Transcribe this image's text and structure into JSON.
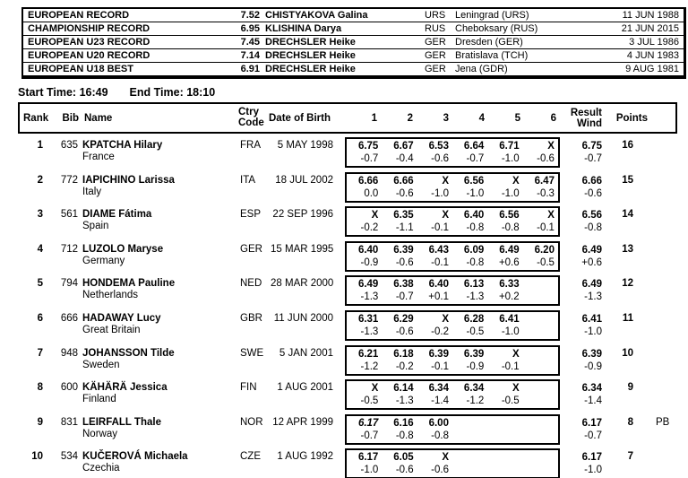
{
  "records": {
    "rows": [
      {
        "label": "EUROPEAN RECORD",
        "mark": "7.52",
        "athlete": "CHISTYAKOVA Galina",
        "nat": "URS",
        "venue": "Leningrad (URS)",
        "date": "11 JUN 1988"
      },
      {
        "label": "CHAMPIONSHIP RECORD",
        "mark": "6.95",
        "athlete": "KLISHINA Darya",
        "nat": "RUS",
        "venue": "Cheboksary (RUS)",
        "date": "21 JUN 2015"
      },
      {
        "label": "EUROPEAN U23 RECORD",
        "mark": "7.45",
        "athlete": "DRECHSLER Heike",
        "nat": "GER",
        "venue": "Dresden (GER)",
        "date": "3 JUL 1986"
      },
      {
        "label": "EUROPEAN U20 RECORD",
        "mark": "7.14",
        "athlete": "DRECHSLER Heike",
        "nat": "GER",
        "venue": "Bratislava (TCH)",
        "date": "4 JUN 1983"
      },
      {
        "label": "EUROPEAN U18 BEST",
        "mark": "6.91",
        "athlete": "DRECHSLER Heike",
        "nat": "GER",
        "venue": "Jena (GDR)",
        "date": "9 AUG 1981"
      }
    ]
  },
  "times": {
    "start_label": "Start Time:",
    "start_value": "16:49",
    "end_label": "End Time:",
    "end_value": "18:10"
  },
  "table": {
    "headers": {
      "rank": "Rank",
      "bib": "Bib",
      "name": "Name",
      "ctry_line1": "Ctry",
      "ctry_line2": "Code",
      "dob": "Date of Birth",
      "attempts": [
        "1",
        "2",
        "3",
        "4",
        "5",
        "6"
      ],
      "result_line1": "Result",
      "result_line2": "Wind",
      "points": "Points"
    },
    "rows": [
      {
        "rank": "1",
        "bib": "635",
        "name": "KPATCHA Hilary",
        "country": "France",
        "ctry": "FRA",
        "dob": "5 MAY 1998",
        "attempts": [
          {
            "mark": "6.75",
            "wind": "-0.7"
          },
          {
            "mark": "6.67",
            "wind": "-0.4"
          },
          {
            "mark": "6.53",
            "wind": "-0.6"
          },
          {
            "mark": "6.64",
            "wind": "-0.7"
          },
          {
            "mark": "6.71",
            "wind": "-1.0"
          },
          {
            "mark": "X",
            "wind": "-0.6"
          }
        ],
        "result": "6.75",
        "result_wind": "-0.7",
        "points": "16",
        "note": ""
      },
      {
        "rank": "2",
        "bib": "772",
        "name": "IAPICHINO Larissa",
        "country": "Italy",
        "ctry": "ITA",
        "dob": "18 JUL 2002",
        "attempts": [
          {
            "mark": "6.66",
            "wind": "0.0"
          },
          {
            "mark": "6.66",
            "wind": "-0.6"
          },
          {
            "mark": "X",
            "wind": "-1.0"
          },
          {
            "mark": "6.56",
            "wind": "-1.0"
          },
          {
            "mark": "X",
            "wind": "-1.0"
          },
          {
            "mark": "6.47",
            "wind": "-0.3"
          }
        ],
        "result": "6.66",
        "result_wind": "-0.6",
        "points": "15",
        "note": ""
      },
      {
        "rank": "3",
        "bib": "561",
        "name": "DIAME Fátima",
        "country": "Spain",
        "ctry": "ESP",
        "dob": "22 SEP 1996",
        "attempts": [
          {
            "mark": "X",
            "wind": "-0.2"
          },
          {
            "mark": "6.35",
            "wind": "-1.1"
          },
          {
            "mark": "X",
            "wind": "-0.1"
          },
          {
            "mark": "6.40",
            "wind": "-0.8"
          },
          {
            "mark": "6.56",
            "wind": "-0.8"
          },
          {
            "mark": "X",
            "wind": "-0.1"
          }
        ],
        "result": "6.56",
        "result_wind": "-0.8",
        "points": "14",
        "note": ""
      },
      {
        "rank": "4",
        "bib": "712",
        "name": "LUZOLO Maryse",
        "country": "Germany",
        "ctry": "GER",
        "dob": "15 MAR 1995",
        "attempts": [
          {
            "mark": "6.40",
            "wind": "-0.9"
          },
          {
            "mark": "6.39",
            "wind": "-0.6"
          },
          {
            "mark": "6.43",
            "wind": "-0.1"
          },
          {
            "mark": "6.09",
            "wind": "-0.8"
          },
          {
            "mark": "6.49",
            "wind": "+0.6"
          },
          {
            "mark": "6.20",
            "wind": "-0.5"
          }
        ],
        "result": "6.49",
        "result_wind": "+0.6",
        "points": "13",
        "note": ""
      },
      {
        "rank": "5",
        "bib": "794",
        "name": "HONDEMA Pauline",
        "country": "Netherlands",
        "ctry": "NED",
        "dob": "28 MAR 2000",
        "attempts": [
          {
            "mark": "6.49",
            "wind": "-1.3"
          },
          {
            "mark": "6.38",
            "wind": "-0.7"
          },
          {
            "mark": "6.40",
            "wind": "+0.1"
          },
          {
            "mark": "6.13",
            "wind": "-1.3"
          },
          {
            "mark": "6.33",
            "wind": "+0.2"
          },
          {
            "mark": "",
            "wind": ""
          }
        ],
        "result": "6.49",
        "result_wind": "-1.3",
        "points": "12",
        "note": ""
      },
      {
        "rank": "6",
        "bib": "666",
        "name": "HADAWAY Lucy",
        "country": "Great Britain",
        "ctry": "GBR",
        "dob": "11 JUN 2000",
        "attempts": [
          {
            "mark": "6.31",
            "wind": "-1.3"
          },
          {
            "mark": "6.29",
            "wind": "-0.6"
          },
          {
            "mark": "X",
            "wind": "-0.2"
          },
          {
            "mark": "6.28",
            "wind": "-0.5"
          },
          {
            "mark": "6.41",
            "wind": "-1.0"
          },
          {
            "mark": "",
            "wind": ""
          }
        ],
        "result": "6.41",
        "result_wind": "-1.0",
        "points": "11",
        "note": ""
      },
      {
        "rank": "7",
        "bib": "948",
        "name": "JOHANSSON Tilde",
        "country": "Sweden",
        "ctry": "SWE",
        "dob": "5 JAN 2001",
        "attempts": [
          {
            "mark": "6.21",
            "wind": "-1.2"
          },
          {
            "mark": "6.18",
            "wind": "-0.2"
          },
          {
            "mark": "6.39",
            "wind": "-0.1"
          },
          {
            "mark": "6.39",
            "wind": "-0.9"
          },
          {
            "mark": "X",
            "wind": "-0.1"
          },
          {
            "mark": "",
            "wind": ""
          }
        ],
        "result": "6.39",
        "result_wind": "-0.9",
        "points": "10",
        "note": ""
      },
      {
        "rank": "8",
        "bib": "600",
        "name": "KÄHÄRÄ Jessica",
        "country": "Finland",
        "ctry": "FIN",
        "dob": "1 AUG 2001",
        "attempts": [
          {
            "mark": "X",
            "wind": "-0.5"
          },
          {
            "mark": "6.14",
            "wind": "-1.3"
          },
          {
            "mark": "6.34",
            "wind": "-1.4"
          },
          {
            "mark": "6.34",
            "wind": "-1.2"
          },
          {
            "mark": "X",
            "wind": "-0.5"
          },
          {
            "mark": "",
            "wind": ""
          }
        ],
        "result": "6.34",
        "result_wind": "-1.4",
        "points": "9",
        "note": ""
      },
      {
        "rank": "9",
        "bib": "831",
        "name": "LEIRFALL Thale",
        "country": "Norway",
        "ctry": "NOR",
        "dob": "12 APR 1999",
        "attempts": [
          {
            "mark": "6.17",
            "wind": "-0.7",
            "italic": true
          },
          {
            "mark": "6.16",
            "wind": "-0.8"
          },
          {
            "mark": "6.00",
            "wind": "-0.8"
          },
          {
            "mark": "",
            "wind": ""
          },
          {
            "mark": "",
            "wind": ""
          },
          {
            "mark": "",
            "wind": ""
          }
        ],
        "result": "6.17",
        "result_wind": "-0.7",
        "points": "8",
        "note": "PB"
      },
      {
        "rank": "10",
        "bib": "534",
        "name": "KUČEROVÁ Michaela",
        "country": "Czechia",
        "ctry": "CZE",
        "dob": "1 AUG 1992",
        "attempts": [
          {
            "mark": "6.17",
            "wind": "-1.0"
          },
          {
            "mark": "6.05",
            "wind": "-0.6"
          },
          {
            "mark": "X",
            "wind": "-0.6"
          },
          {
            "mark": "",
            "wind": ""
          },
          {
            "mark": "",
            "wind": ""
          },
          {
            "mark": "",
            "wind": ""
          }
        ],
        "result": "6.17",
        "result_wind": "-1.0",
        "points": "7",
        "note": ""
      }
    ]
  }
}
